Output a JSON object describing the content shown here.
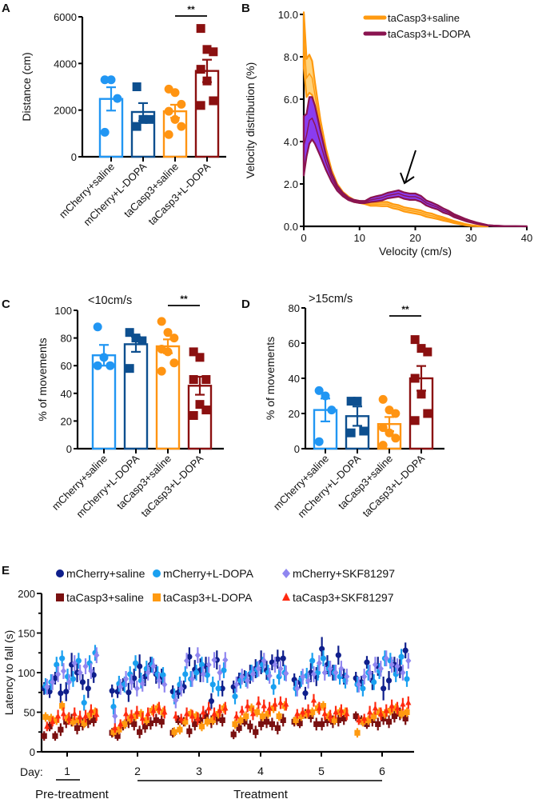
{
  "colors": {
    "mcherry_saline_ABCD": "#2196f3",
    "mcherry_ldopa_ABCD": "#0d4f8f",
    "tacasp3_saline_ABCD": "#ff9412",
    "tacasp3_ldopa_ABCD": "#8b1010",
    "b_saline": "#ff9a10",
    "b_saline_fill": "#ffd27a",
    "b_ldopa": "#8a1450",
    "b_ldopa_fill": "#8a3cf0",
    "e_mcherry_saline": "#0f1f8c",
    "e_mcherry_ldopa": "#1aa0f0",
    "e_mcherry_skf": "#8f86f0",
    "e_tacasp3_saline": "#7a1010",
    "e_tacasp3_ldopa": "#ff9a10",
    "e_tacasp3_skf": "#ff2a10"
  },
  "chart_data": [
    {
      "panel": "A",
      "type": "bar",
      "title": "",
      "xlabel": "",
      "ylabel": "Distance (cm)",
      "ylim": [
        0,
        6000
      ],
      "yticks": [
        0,
        2000,
        4000,
        6000
      ],
      "categories": [
        "mCherry+saline",
        "mCherry+L-DOPA",
        "taCasp3+saline",
        "taCasp3+L-DOPA"
      ],
      "values": [
        2480,
        1920,
        1950,
        3680
      ],
      "sem": [
        500,
        380,
        280,
        480
      ],
      "points": [
        [
          3300,
          3300,
          2500,
          1050
        ],
        [
          3000,
          1600,
          1600,
          1300
        ],
        [
          2900,
          2750,
          2250,
          1950,
          1600,
          1300,
          950
        ],
        [
          5500,
          4600,
          4500,
          3750,
          3250,
          2400,
          2200
        ]
      ],
      "markers": [
        "circle",
        "square",
        "circle",
        "square"
      ],
      "significance": {
        "between": [
          2,
          3
        ],
        "label": "**"
      }
    },
    {
      "panel": "B",
      "type": "line",
      "xlabel": "Velocity (cm/s)",
      "ylabel": "Velocity distribution (%)",
      "xlim": [
        0,
        40
      ],
      "ylim": [
        0,
        10
      ],
      "xticks": [
        0,
        10,
        20,
        30,
        40
      ],
      "yticks": [
        "0.0",
        "2.0",
        "4.0",
        "6.0",
        "8.0",
        "10.0"
      ],
      "legend": [
        "taCasp3+saline",
        "taCasp3+L-DOPA"
      ],
      "legend_position": "top-right",
      "annotation": "arrow pointing at ~19 cm/s, 2.0%",
      "series": [
        {
          "name": "taCasp3+saline",
          "x": [
            0,
            0.5,
            1,
            1.5,
            2,
            3,
            4,
            5,
            6,
            7,
            8,
            9,
            10,
            11,
            12,
            13,
            14,
            15,
            16,
            17,
            18,
            19,
            20,
            21,
            22,
            23,
            24,
            25,
            26,
            27,
            28,
            29,
            30,
            31,
            32,
            33
          ],
          "mean": [
            8.8,
            7.0,
            7.2,
            7.0,
            6.2,
            4.6,
            3.4,
            2.5,
            1.9,
            1.55,
            1.35,
            1.2,
            1.15,
            1.1,
            1.05,
            1.05,
            1.05,
            1.05,
            0.95,
            0.9,
            0.8,
            0.75,
            0.7,
            0.65,
            0.55,
            0.5,
            0.42,
            0.35,
            0.28,
            0.2,
            0.14,
            0.08,
            0.04,
            0.02,
            0.01,
            0.0
          ],
          "sem": [
            1.3,
            0.9,
            0.9,
            0.8,
            0.6,
            0.4,
            0.25,
            0.15,
            0.1,
            0.08,
            0.06,
            0.05,
            0.05,
            0.05,
            0.08,
            0.08,
            0.1,
            0.1,
            0.1,
            0.1,
            0.1,
            0.1,
            0.1,
            0.1,
            0.1,
            0.1,
            0.08,
            0.08,
            0.06,
            0.05,
            0.04,
            0.03,
            0.02,
            0.01,
            0.01,
            0.0
          ]
        },
        {
          "name": "taCasp3+L-DOPA",
          "x": [
            0,
            0.5,
            1,
            1.5,
            2,
            3,
            4,
            5,
            6,
            7,
            8,
            9,
            10,
            11,
            12,
            13,
            14,
            15,
            16,
            17,
            18,
            19,
            20,
            21,
            22,
            23,
            24,
            25,
            26,
            27,
            28,
            29,
            30,
            31,
            32,
            33,
            34,
            35,
            36,
            38,
            40
          ],
          "mean": [
            3.8,
            4.3,
            5.0,
            5.1,
            4.8,
            3.9,
            3.0,
            2.3,
            1.8,
            1.5,
            1.3,
            1.2,
            1.15,
            1.15,
            1.25,
            1.3,
            1.35,
            1.45,
            1.5,
            1.55,
            1.45,
            1.4,
            1.4,
            1.3,
            1.1,
            1.0,
            0.9,
            0.75,
            0.65,
            0.5,
            0.4,
            0.3,
            0.22,
            0.15,
            0.1,
            0.05,
            0.03,
            0.02,
            0.01,
            0.01,
            0.0
          ],
          "sem": [
            1.4,
            1.0,
            1.1,
            1.0,
            0.9,
            0.6,
            0.35,
            0.2,
            0.12,
            0.08,
            0.06,
            0.05,
            0.05,
            0.05,
            0.1,
            0.12,
            0.13,
            0.13,
            0.14,
            0.15,
            0.15,
            0.15,
            0.15,
            0.14,
            0.12,
            0.12,
            0.1,
            0.1,
            0.08,
            0.07,
            0.06,
            0.05,
            0.04,
            0.03,
            0.02,
            0.01,
            0.01,
            0.01,
            0.0,
            0.0,
            0.0
          ]
        }
      ]
    },
    {
      "panel": "C",
      "type": "bar",
      "title": "<10cm/s",
      "ylabel": "% of movements",
      "ylim": [
        0,
        100
      ],
      "yticks": [
        0,
        20,
        40,
        60,
        80,
        100
      ],
      "categories": [
        "mCherry+saline",
        "mCherry+L-DOPA",
        "taCasp3+saline",
        "taCasp3+L-DOPA"
      ],
      "values": [
        67.5,
        75.5,
        74,
        45.5
      ],
      "sem": [
        7.5,
        5.5,
        5,
        6.5
      ],
      "points": [
        [
          88,
          66,
          60,
          60
        ],
        [
          84,
          80,
          78,
          58
        ],
        [
          92,
          84,
          80,
          72,
          70,
          62,
          56
        ],
        [
          70,
          66,
          50,
          50,
          32,
          28,
          24
        ]
      ],
      "markers": [
        "circle",
        "square",
        "circle",
        "square"
      ],
      "significance": {
        "between": [
          2,
          3
        ],
        "label": "**"
      }
    },
    {
      "panel": "D",
      "type": "bar",
      "title": ">15cm/s",
      "ylabel": "% of movements",
      "ylim": [
        0,
        80
      ],
      "yticks": [
        0,
        20,
        40,
        60,
        80
      ],
      "categories": [
        "mCherry+saline",
        "mCherry+L-DOPA",
        "taCasp3+saline",
        "taCasp3+L-DOPA"
      ],
      "values": [
        22,
        18.5,
        14,
        40
      ],
      "sem": [
        6.5,
        5.5,
        4,
        7
      ],
      "points": [
        [
          33,
          30,
          22,
          4
        ],
        [
          27,
          27,
          10,
          9
        ],
        [
          28,
          22,
          20,
          12,
          9,
          6,
          2
        ],
        [
          62,
          57,
          55,
          40,
          31,
          20,
          16
        ]
      ],
      "markers": [
        "circle",
        "square",
        "circle",
        "square"
      ],
      "significance": {
        "between": [
          2,
          3
        ],
        "label": "**"
      }
    },
    {
      "panel": "E",
      "type": "scatter",
      "ylabel": "Latency to fall (s)",
      "xlabel": "Day:",
      "ylim": [
        0,
        200
      ],
      "yticks": [
        0,
        50,
        100,
        150,
        200
      ],
      "days": [
        "1",
        "2",
        "3",
        "4",
        "5",
        "6"
      ],
      "phases": [
        {
          "label": "Pre-treatment",
          "days": [
            "1"
          ]
        },
        {
          "label": "Treatment",
          "days": [
            "2",
            "3",
            "4",
            "5",
            "6"
          ]
        }
      ],
      "legend": [
        "mCherry+saline",
        "mCherry+L-DOPA",
        "mCherry+SKF81297",
        "taCasp3+saline",
        "taCasp3+L-DOPA",
        "taCasp3+SKF81297"
      ],
      "legend_position": "top",
      "trials_per_day": 10,
      "series": [
        {
          "name": "mCherry+saline",
          "marker": "circle",
          "values": [
            [
              80,
              76,
              93,
              74,
              76,
              110,
              100,
              88,
              80,
              97
            ],
            [
              77,
              76,
              85,
              75,
              93,
              108,
              95,
              110,
              98,
              95
            ],
            [
              76,
              75,
              82,
              120,
              104,
              103,
              108,
              64,
              116,
              80
            ],
            [
              82,
              92,
              95,
              98,
              105,
              113,
              103,
              113,
              117,
              118
            ],
            [
              91,
              88,
              74,
              100,
              95,
              130,
              110,
              100,
              122,
              95
            ],
            [
              93,
              88,
              113,
              90,
              108,
              80,
              90,
              110,
              105,
              128
            ]
          ],
          "sem": [
            8,
            8,
            8,
            12,
            12,
            15,
            12,
            10,
            12,
            10
          ]
        },
        {
          "name": "mCherry+L-DOPA",
          "marker": "circle",
          "values": [
            [
              83,
              88,
              110,
              118,
              95,
              92,
              115,
              62,
              112,
              125
            ],
            [
              57,
              86,
              85,
              98,
              112,
              90,
              105,
              110,
              98,
              97
            ],
            [
              70,
              85,
              98,
              92,
              100,
              110,
              97,
              85,
              80,
              103
            ],
            [
              70,
              90,
              92,
              100,
              104,
              110,
              100,
              82,
              95,
              100
            ],
            [
              80,
              92,
              96,
              115,
              100,
              118,
              105,
              100,
              95,
              90
            ],
            [
              85,
              80,
              100,
              88,
              102,
              118,
              115,
              98,
              120,
              92
            ]
          ],
          "sem": [
            10,
            10,
            10,
            10,
            10,
            10,
            10,
            10,
            10,
            10
          ]
        },
        {
          "name": "mCherry+SKF81297",
          "marker": "diamond",
          "values": [
            [
              82,
              88,
              98,
              102,
              88,
              112,
              100,
              108,
              102,
              122
            ],
            [
              45,
              82,
              92,
              88,
              80,
              86,
              100,
              108,
              90,
              85
            ],
            [
              65,
              80,
              115,
              92,
              122,
              98,
              110,
              116,
              100,
              116
            ],
            [
              85,
              95,
              90,
              98,
              105,
              115,
              96,
              110,
              105,
              99
            ],
            [
              80,
              95,
              90,
              98,
              112,
              100,
              105,
              100,
              105,
              95
            ],
            [
              85,
              95,
              100,
              110,
              105,
              118,
              110,
              108,
              100,
              115
            ]
          ],
          "sem": [
            10,
            10,
            10,
            10,
            10,
            10,
            10,
            10,
            10,
            10
          ]
        },
        {
          "name": "taCasp3+saline",
          "marker": "square",
          "values": [
            [
              20,
              32,
              20,
              28,
              38,
              40,
              30,
              35,
              38,
              40
            ],
            [
              24,
              20,
              33,
              38,
              35,
              25,
              32,
              36,
              40,
              38
            ],
            [
              24,
              40,
              38,
              26,
              35,
              40,
              45,
              38,
              42,
              40
            ],
            [
              22,
              30,
              38,
              32,
              25,
              35,
              38,
              35,
              30,
              40
            ],
            [
              38,
              36,
              48,
              45,
              35,
              35,
              40,
              38,
              40,
              42
            ],
            [
              45,
              40,
              35,
              40,
              35,
              42,
              38,
              45,
              48,
              42
            ]
          ],
          "sem": [
            6,
            6,
            6,
            8,
            8,
            8,
            8,
            8,
            8,
            8
          ]
        },
        {
          "name": "taCasp3+L-DOPA",
          "marker": "square",
          "values": [
            [
              44,
              42,
              40,
              58,
              42,
              38,
              40,
              36,
              46,
              50
            ],
            [
              25,
              28,
              35,
              42,
              45,
              48,
              40,
              52,
              55,
              50
            ],
            [
              25,
              28,
              38,
              48,
              45,
              32,
              38,
              40,
              48,
              55
            ],
            [
              35,
              40,
              45,
              55,
              50,
              45,
              48,
              55,
              45,
              58
            ],
            [
              40,
              45,
              48,
              50,
              55,
              58,
              45,
              40,
              50,
              50
            ],
            [
              24,
              38,
              40,
              45,
              50,
              48,
              52,
              55,
              48,
              50
            ]
          ],
          "sem": [
            6,
            6,
            6,
            6,
            6,
            6,
            6,
            6,
            6,
            6
          ]
        },
        {
          "name": "taCasp3+SKF81297",
          "marker": "triangle",
          "values": [
            [
              32,
              38,
              45,
              48,
              42,
              48,
              44,
              45,
              52,
              47
            ],
            [
              30,
              35,
              48,
              45,
              50,
              42,
              48,
              52,
              55,
              50
            ],
            [
              45,
              42,
              48,
              45,
              42,
              50,
              55,
              48,
              52,
              55
            ],
            [
              45,
              52,
              58,
              48,
              62,
              58,
              55,
              60,
              62,
              60
            ],
            [
              48,
              50,
              52,
              65,
              55,
              48,
              45,
              50,
              52,
              48
            ],
            [
              40,
              42,
              50,
              55,
              48,
              52,
              58,
              55,
              60,
              62
            ]
          ],
          "sem": [
            6,
            6,
            8,
            8,
            8,
            8,
            8,
            8,
            8,
            8
          ]
        }
      ]
    }
  ]
}
